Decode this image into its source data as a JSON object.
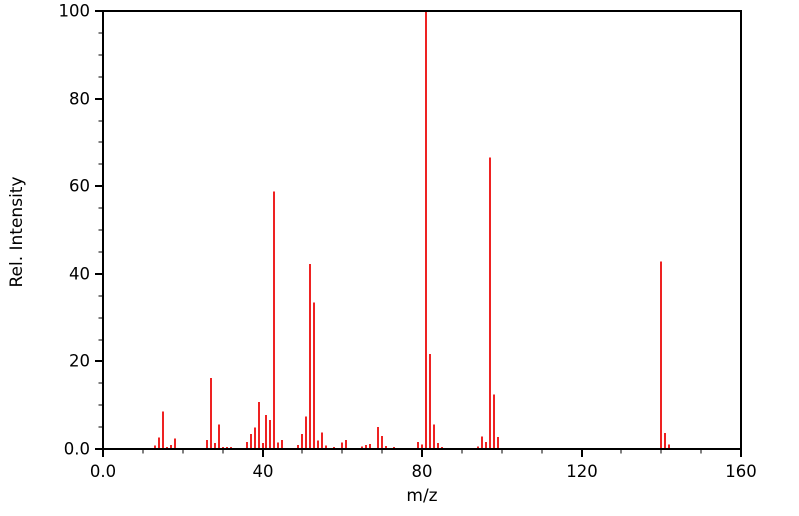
{
  "chart_data": {
    "type": "bar",
    "subtype": "mass-spectrum",
    "title": "",
    "xlabel": "m/z",
    "ylabel": "Rel. Intensity",
    "xlim": [
      0,
      160
    ],
    "ylim": [
      0,
      100
    ],
    "grid": false,
    "legend": false,
    "x_tick_values": [
      0,
      40,
      80,
      120,
      160
    ],
    "x_tick_labels": [
      "0.0",
      "40",
      "80",
      "120",
      "160"
    ],
    "x_minor_step": 10,
    "y_tick_values": [
      0,
      20,
      40,
      60,
      80,
      100
    ],
    "y_tick_labels": [
      "0.0",
      "20",
      "40",
      "60",
      "80",
      "100"
    ],
    "y_minor_step": 5,
    "bar_color": "#ee2222",
    "axis_color": "#000000",
    "background": "#ffffff",
    "peaks": {
      "mz": [
        13,
        14,
        15,
        16,
        17,
        18,
        26,
        27,
        28,
        29,
        30,
        31,
        32,
        36,
        37,
        38,
        39,
        40,
        41,
        42,
        43,
        44,
        45,
        49,
        50,
        51,
        52,
        53,
        54,
        55,
        56,
        58,
        60,
        61,
        65,
        66,
        67,
        69,
        70,
        71,
        73,
        79,
        80,
        81,
        82,
        83,
        84,
        85,
        94,
        95,
        96,
        97,
        98,
        99,
        140,
        141,
        142
      ],
      "intensity": [
        0.8,
        2.6,
        8.6,
        0.5,
        0.9,
        2.4,
        2.1,
        16.2,
        1.4,
        5.6,
        0.5,
        0.4,
        0.5,
        1.6,
        3.4,
        4.9,
        10.7,
        1.4,
        7.8,
        6.6,
        58.8,
        1.5,
        2.1,
        0.9,
        3.4,
        7.4,
        42.2,
        33.5,
        1.9,
        3.8,
        0.8,
        0.5,
        1.5,
        2.1,
        0.6,
        0.9,
        1.1,
        5.0,
        3.0,
        0.7,
        0.4,
        1.6,
        1.0,
        100.0,
        21.7,
        5.6,
        1.4,
        0.5,
        0.6,
        2.8,
        1.6,
        66.5,
        12.4,
        2.7,
        42.8,
        3.7,
        1.0
      ]
    }
  }
}
